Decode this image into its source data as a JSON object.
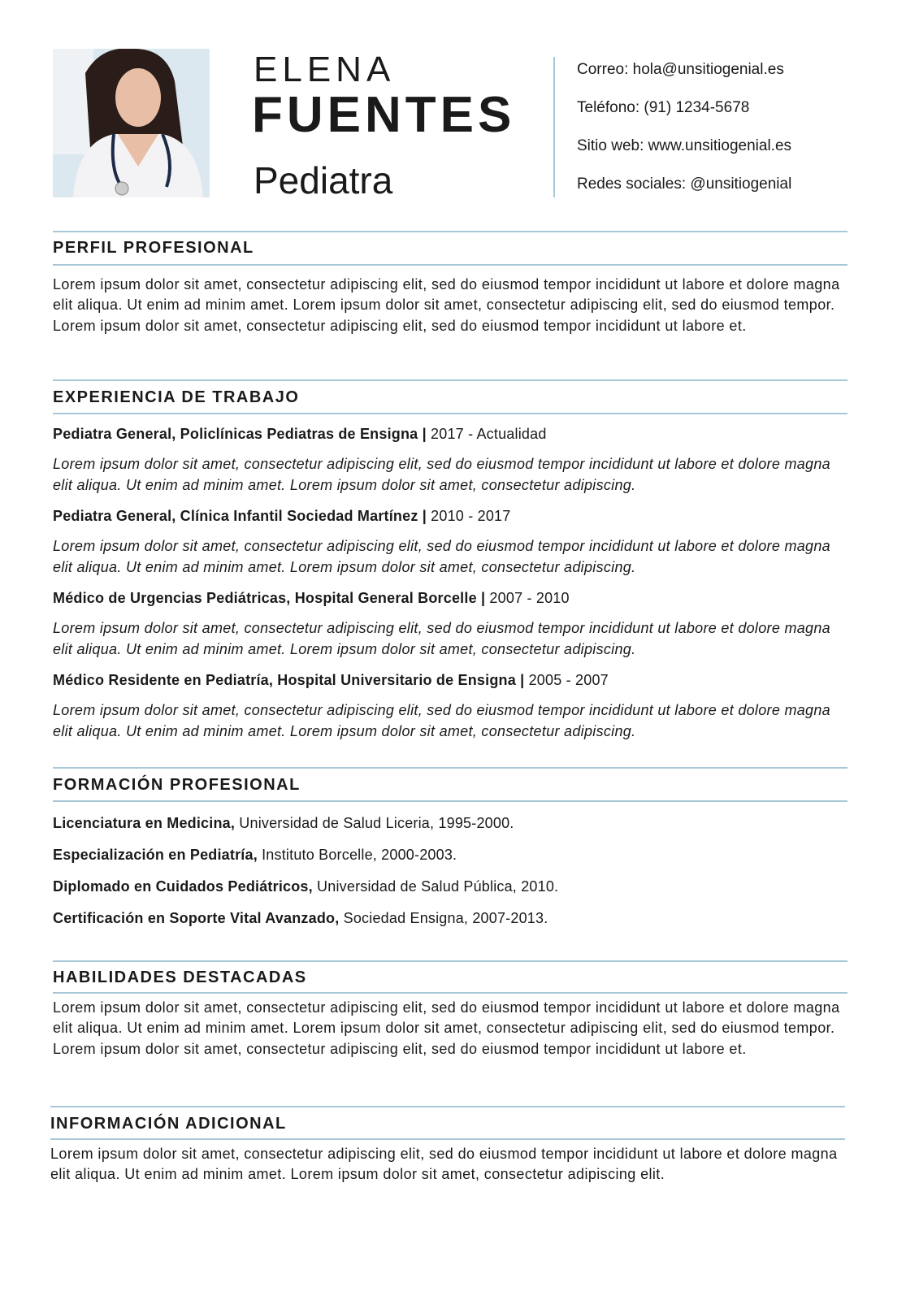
{
  "header": {
    "first_name": "ELENA",
    "last_name": "FUENTES",
    "role": "Pediatra",
    "contacts": [
      "Correo: hola@unsitiogenial.es",
      "Teléfono: (91) 1234-5678",
      "Sitio web: www.unsitiogenial.es",
      "Redes sociales: @unsitiogenial"
    ]
  },
  "profile": {
    "title": "PERFIL PROFESIONAL",
    "text": "Lorem ipsum dolor sit amet, consectetur adipiscing elit, sed do eiusmod tempor incididunt ut labore et dolore magna elit aliqua. Ut enim ad minim amet. Lorem ipsum dolor sit amet, consectetur adipiscing elit, sed do eiusmod tempor. Lorem ipsum dolor sit amet, consectetur adipiscing elit, sed do eiusmod tempor incididunt ut labore et."
  },
  "experience": {
    "title": "EXPERIENCIA DE TRABAJO",
    "jobs": [
      {
        "position": "Pediatra General, Policlínicas Pediatras de Ensigna  |",
        "dates": " 2017 - Actualidad",
        "text": "Lorem ipsum dolor sit amet, consectetur adipiscing elit, sed do eiusmod tempor incididunt ut labore et dolore magna elit aliqua. Ut enim ad minim amet. Lorem ipsum dolor sit amet, consectetur adipiscing."
      },
      {
        "position": "Pediatra General, Clínica Infantil Sociedad Martínez |",
        "dates": " 2010 - 2017",
        "text": "Lorem ipsum dolor sit amet, consectetur adipiscing elit, sed do eiusmod tempor incididunt ut labore et dolore magna elit aliqua. Ut enim ad minim amet. Lorem ipsum dolor sit amet, consectetur adipiscing."
      },
      {
        "position": "Médico de Urgencias Pediátricas, Hospital General Borcelle |",
        "dates": " 2007 - 2010",
        "text": "Lorem ipsum dolor sit amet, consectetur adipiscing elit, sed do eiusmod tempor incididunt ut labore et dolore magna elit aliqua. Ut enim ad minim amet. Lorem ipsum dolor sit amet, consectetur adipiscing."
      },
      {
        "position": "Médico Residente en Pediatría, Hospital Universitario de Ensigna |",
        "dates": " 2005 - 2007",
        "text": "Lorem ipsum dolor sit amet, consectetur adipiscing elit, sed do eiusmod tempor incididunt ut labore et dolore magna elit aliqua. Ut enim ad minim amet. Lorem ipsum dolor sit amet, consectetur adipiscing."
      }
    ]
  },
  "education": {
    "title": "FORMACIÓN PROFESIONAL",
    "items": [
      {
        "degree": "Licenciatura en Medicina,",
        "detail": " Universidad de Salud Liceria, 1995-2000."
      },
      {
        "degree": "Especialización en Pediatría,",
        "detail": " Instituto Borcelle, 2000-2003."
      },
      {
        "degree": "Diplomado en Cuidados Pediátricos,",
        "detail": " Universidad de Salud Pública, 2010."
      },
      {
        "degree": "Certificación en Soporte Vital Avanzado,",
        "detail": " Sociedad Ensigna, 2007-2013."
      }
    ]
  },
  "skills": {
    "title": "HABILIDADES DESTACADAS",
    "text": "Lorem ipsum dolor sit amet, consectetur adipiscing elit, sed do eiusmod tempor incididunt ut labore et dolore magna elit aliqua. Ut enim ad minim amet. Lorem ipsum dolor sit amet, consectetur adipiscing elit, sed do eiusmod tempor. Lorem ipsum dolor sit amet, consectetur adipiscing elit, sed do eiusmod tempor incididunt ut labore et."
  },
  "additional": {
    "title": "INFORMACIÓN ADICIONAL",
    "text": "Lorem ipsum dolor sit amet, consectetur adipiscing elit, sed do eiusmod tempor incididunt ut labore et dolore magna elit aliqua. Ut enim ad minim amet. Lorem ipsum dolor sit amet, consectetur adipiscing elit."
  },
  "colors": {
    "rule": "#a8c8d8",
    "text": "#1a1a1a"
  }
}
